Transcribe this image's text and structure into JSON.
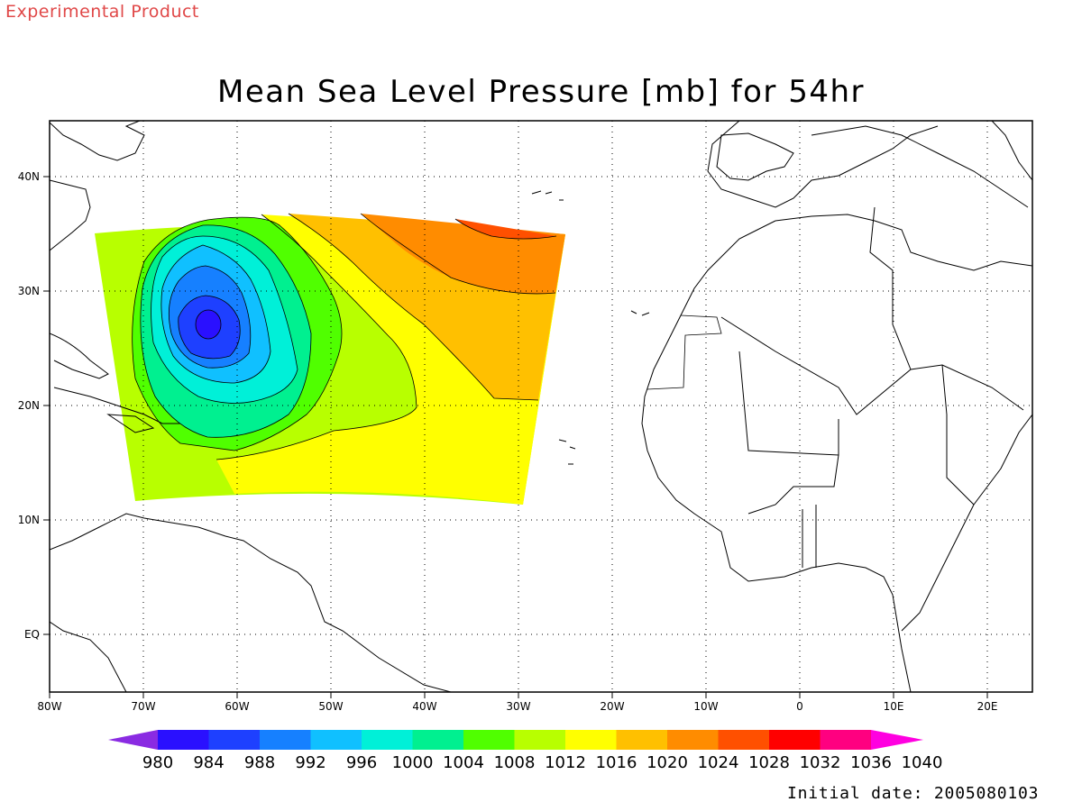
{
  "header": {
    "experimental": "Experimental Product",
    "title": "Mean Sea Level Pressure [mb] for 54hr"
  },
  "footer": {
    "initial_date": "Initial date: 2005080103"
  },
  "map": {
    "lon_labels": [
      "80W",
      "70W",
      "60W",
      "50W",
      "40W",
      "30W",
      "20W",
      "10W",
      "0",
      "10E",
      "20E"
    ],
    "lat_labels": [
      "40N",
      "30N",
      "20N",
      "10N",
      "EQ"
    ],
    "grid": "dotted",
    "region": "Tropical Atlantic with Caribbean, South America and West Africa"
  },
  "colorbar": {
    "labels": [
      "980",
      "984",
      "988",
      "992",
      "996",
      "1000",
      "1004",
      "1008",
      "1012",
      "1016",
      "1020",
      "1024",
      "1028",
      "1032",
      "1036",
      "1040"
    ],
    "colors": [
      "#8a2be2",
      "#2a10ff",
      "#1e40ff",
      "#1680ff",
      "#10c0ff",
      "#00f0d8",
      "#00f090",
      "#50ff00",
      "#b8ff00",
      "#ffff00",
      "#ffc000",
      "#ff8c00",
      "#ff5000",
      "#ff0000",
      "#ff0080",
      "#ff00e0"
    ]
  },
  "chart_data": {
    "type": "heatmap",
    "title": "Mean Sea Level Pressure [mb] for 54hr",
    "units": "mb",
    "contour_levels": [
      980,
      984,
      988,
      992,
      996,
      1000,
      1004,
      1008,
      1012,
      1016,
      1020,
      1024,
      1028,
      1032,
      1036,
      1040
    ],
    "low_center": {
      "lon": -63,
      "lat": 27,
      "value_range": [
        980,
        984
      ]
    },
    "high_region": {
      "lon": -33,
      "lat": 36,
      "value_range": [
        1024,
        1028
      ]
    },
    "xlim": [
      "80W",
      "25E"
    ],
    "ylim": [
      "5S",
      "45N"
    ]
  }
}
